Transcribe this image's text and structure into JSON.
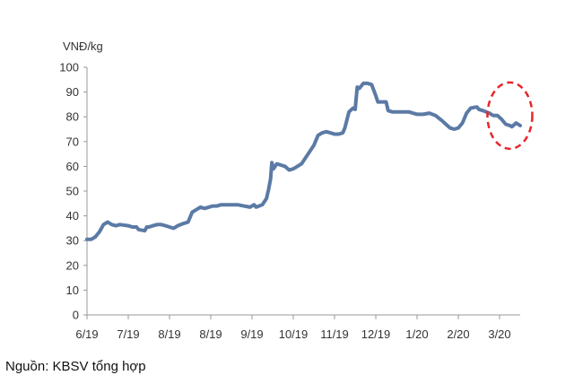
{
  "chart_data": {
    "type": "line",
    "unit_label": "VNĐ/kg",
    "ylim": [
      0,
      100
    ],
    "y_ticks": [
      0,
      10,
      20,
      30,
      40,
      50,
      60,
      70,
      80,
      90,
      100
    ],
    "x_ticks": [
      "6/19",
      "7/19",
      "8/19",
      "8/19",
      "9/19",
      "10/19",
      "11/19",
      "12/19",
      "1/20",
      "2/20",
      "3/20"
    ],
    "x_range": [
      0,
      10.5
    ],
    "grid": false,
    "series": [
      {
        "color": "#5b7aa5",
        "points": [
          [
            0.0,
            30.5
          ],
          [
            0.1,
            30.5
          ],
          [
            0.2,
            31.5
          ],
          [
            0.3,
            33.5
          ],
          [
            0.4,
            36.5
          ],
          [
            0.5,
            37.5
          ],
          [
            0.6,
            36.5
          ],
          [
            0.7,
            36.0
          ],
          [
            0.8,
            36.5
          ],
          [
            1.0,
            36.0
          ],
          [
            1.1,
            35.5
          ],
          [
            1.2,
            35.5
          ],
          [
            1.25,
            34.5
          ],
          [
            1.4,
            34.0
          ],
          [
            1.45,
            35.5
          ],
          [
            1.5,
            35.5
          ],
          [
            1.6,
            36.0
          ],
          [
            1.7,
            36.5
          ],
          [
            1.8,
            36.5
          ],
          [
            1.9,
            36.0
          ],
          [
            2.0,
            35.5
          ],
          [
            2.1,
            35.0
          ],
          [
            2.2,
            36.0
          ],
          [
            2.35,
            37.0
          ],
          [
            2.45,
            37.5
          ],
          [
            2.55,
            41.5
          ],
          [
            2.65,
            42.5
          ],
          [
            2.75,
            43.5
          ],
          [
            2.85,
            43.0
          ],
          [
            2.95,
            43.5
          ],
          [
            3.05,
            44.0
          ],
          [
            3.15,
            44.0
          ],
          [
            3.25,
            44.5
          ],
          [
            3.35,
            44.5
          ],
          [
            3.5,
            44.5
          ],
          [
            3.65,
            44.5
          ],
          [
            3.8,
            44.0
          ],
          [
            3.95,
            43.5
          ],
          [
            4.05,
            44.5
          ],
          [
            4.1,
            43.5
          ],
          [
            4.25,
            44.5
          ],
          [
            4.35,
            47.0
          ],
          [
            4.4,
            50.5
          ],
          [
            4.45,
            55.0
          ],
          [
            4.48,
            61.5
          ],
          [
            4.52,
            59.0
          ],
          [
            4.6,
            61.0
          ],
          [
            4.7,
            60.5
          ],
          [
            4.8,
            60.0
          ],
          [
            4.9,
            58.5
          ],
          [
            5.0,
            59.0
          ],
          [
            5.1,
            60.0
          ],
          [
            5.2,
            61.0
          ],
          [
            5.3,
            63.5
          ],
          [
            5.4,
            66.0
          ],
          [
            5.5,
            68.5
          ],
          [
            5.6,
            72.5
          ],
          [
            5.7,
            73.5
          ],
          [
            5.8,
            74.0
          ],
          [
            5.9,
            73.5
          ],
          [
            6.0,
            73.0
          ],
          [
            6.1,
            73.0
          ],
          [
            6.2,
            73.5
          ],
          [
            6.25,
            75.5
          ],
          [
            6.35,
            82.0
          ],
          [
            6.45,
            83.5
          ],
          [
            6.5,
            83.0
          ],
          [
            6.55,
            92.0
          ],
          [
            6.6,
            91.5
          ],
          [
            6.7,
            93.5
          ],
          [
            6.8,
            93.5
          ],
          [
            6.9,
            93.0
          ],
          [
            7.0,
            88.5
          ],
          [
            7.05,
            86.0
          ],
          [
            7.15,
            86.0
          ],
          [
            7.25,
            86.0
          ],
          [
            7.3,
            82.5
          ],
          [
            7.4,
            82.0
          ],
          [
            7.6,
            82.0
          ],
          [
            7.8,
            82.0
          ],
          [
            7.9,
            81.5
          ],
          [
            8.0,
            81.0
          ],
          [
            8.15,
            81.0
          ],
          [
            8.3,
            81.5
          ],
          [
            8.45,
            80.5
          ],
          [
            8.6,
            78.5
          ],
          [
            8.7,
            77.0
          ],
          [
            8.8,
            75.5
          ],
          [
            8.9,
            75.0
          ],
          [
            9.0,
            75.5
          ],
          [
            9.1,
            77.5
          ],
          [
            9.2,
            81.5
          ],
          [
            9.3,
            83.5
          ],
          [
            9.45,
            84.0
          ],
          [
            9.5,
            83.0
          ],
          [
            9.6,
            82.5
          ],
          [
            9.75,
            81.5
          ],
          [
            9.85,
            80.5
          ],
          [
            9.95,
            80.5
          ],
          [
            10.05,
            79.0
          ],
          [
            10.15,
            77.0
          ],
          [
            10.25,
            76.5
          ],
          [
            10.3,
            76.0
          ],
          [
            10.4,
            77.5
          ],
          [
            10.5,
            76.5
          ]
        ]
      }
    ],
    "annotation": {
      "type": "dashed-ellipse",
      "color": "#e8262a",
      "center": [
        10.25,
        80.5
      ]
    }
  },
  "source": "Nguồn: KBSV tổng hợp"
}
